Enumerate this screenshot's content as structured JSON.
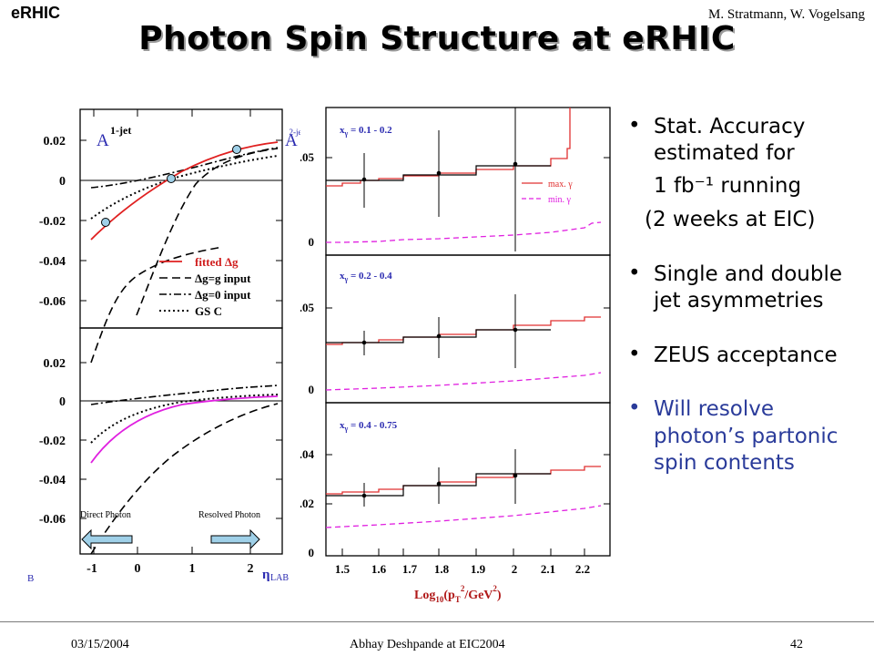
{
  "header": {
    "left": "eRHIC",
    "right": "M. Stratmann, W. Vogelsang",
    "title": "Photon Spin Structure at eRHIC"
  },
  "footer": {
    "date": "03/15/2004",
    "presenter": "Abhay Deshpande at EIC2004",
    "page": "42"
  },
  "bullets": [
    {
      "text": "Stat. Accuracy estimated for",
      "sub1": "1 fb⁻¹ running",
      "sub2": "(2 weeks at EIC)"
    },
    {
      "text": "Single and double jet asymmetries"
    },
    {
      "text": "ZEUS acceptance"
    },
    {
      "text": "Will resolve photon’s partonic spin contents",
      "color": "#2a3b9a"
    }
  ],
  "left_figure": {
    "label_A1": "A",
    "label_A1_sup": "1-jet",
    "label_A2": "A",
    "label_A2_sup": "2-jet",
    "legend": [
      "fitted Δg",
      "Δg=g input",
      "Δg=0 input",
      "GS C"
    ],
    "y_ticks_top": [
      "0.02",
      "0",
      "-0.02",
      "-0.04",
      "-0.06"
    ],
    "y_ticks_bottom": [
      "0.02",
      "0",
      "-0.02",
      "-0.04",
      "-0.06"
    ],
    "x_ticks": [
      "-1",
      "0",
      "1",
      "2"
    ],
    "x_label": "η",
    "x_label_sub": "LAB",
    "corner_label": "B",
    "arrow_left": "Direct Photon",
    "arrow_right": "Resolved Photon",
    "colors": {
      "fitted_top": "#e02020",
      "fitted_bottom": "#e020e0",
      "points": "#9fd0e8"
    }
  },
  "right_figure": {
    "panels": [
      {
        "label_x": "x",
        "label_sub": "γ",
        "range": " = 0.1 - 0.2",
        "y_ticks": [
          "0.05",
          "0"
        ]
      },
      {
        "label_x": "x",
        "label_sub": "γ",
        "range": " = 0.2 - 0.4",
        "y_ticks": [
          "0.05",
          "0"
        ]
      },
      {
        "label_x": "x",
        "label_sub": "γ",
        "range": " = 0.4 - 0.75",
        "y_ticks": [
          "0.04",
          "0.02",
          "0"
        ]
      }
    ],
    "legend": [
      "max. γ",
      "min. γ"
    ],
    "x_ticks": [
      "1.5",
      "1.6",
      "1.7",
      "1.8",
      "1.9",
      "2",
      "2.1",
      "2.2"
    ],
    "x_label": "Log",
    "x_label_sub": "10",
    "x_label_rest": "(p",
    "x_label_T": "T",
    "x_label_2": "2",
    "x_label_unit": "/GeV",
    "x_label_2b": "2",
    "x_label_close": ")",
    "colors": {
      "max": "#e03030",
      "min": "#e020e0",
      "xlabel": "#b01818"
    }
  }
}
